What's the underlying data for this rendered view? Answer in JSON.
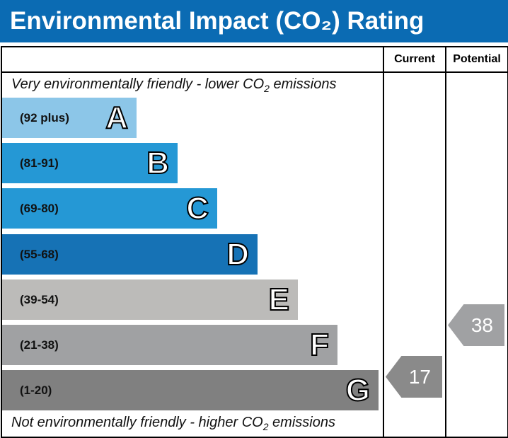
{
  "chart_data": {
    "type": "table",
    "title": "Environmental Impact (CO₂) Rating",
    "columns": [
      "Current",
      "Potential"
    ],
    "top_note": {
      "pre": "Very environmentally friendly - lower CO",
      "sub": "2",
      "post": " emissions"
    },
    "bottom_note": {
      "pre": "Not environmentally friendly - higher CO",
      "sub": "2",
      "post": " emissions"
    },
    "bands": [
      {
        "letter": "A",
        "range": "(92 plus)",
        "color": "#8cc6e8"
      },
      {
        "letter": "B",
        "range": "(81-91)",
        "color": "#2598d5"
      },
      {
        "letter": "C",
        "range": "(69-80)",
        "color": "#2598d5"
      },
      {
        "letter": "D",
        "range": "(55-68)",
        "color": "#1672b5"
      },
      {
        "letter": "E",
        "range": "(39-54)",
        "color": "#bcbbb9"
      },
      {
        "letter": "F",
        "range": "(21-38)",
        "color": "#a0a1a3"
      },
      {
        "letter": "G",
        "range": "(1-20)",
        "color": "#808080"
      }
    ],
    "current": {
      "value": 17,
      "band": "G",
      "color": "#8a8a8a"
    },
    "potential": {
      "value": 38,
      "band": "F",
      "color": "#a0a1a3"
    }
  }
}
